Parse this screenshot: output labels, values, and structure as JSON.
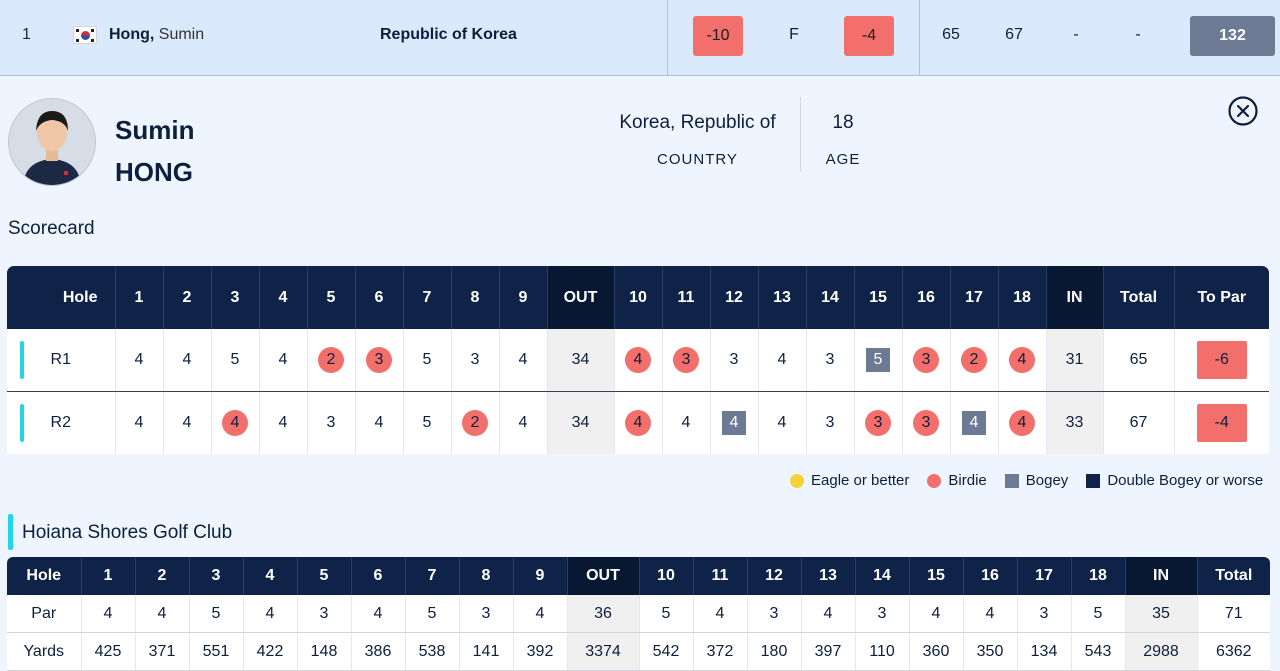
{
  "leaderboard": {
    "position": "1",
    "last_name": "Hong,",
    "first_name": "Sumin",
    "country": "Republic of Korea",
    "to_par": "-10",
    "thru": "F",
    "today": "-4",
    "r1": "65",
    "r2": "67",
    "r3": "-",
    "r4": "-",
    "total": "132"
  },
  "player": {
    "first_name": "Sumin",
    "last_name": "HONG",
    "country_value": "Korea, Republic of",
    "country_label": "COUNTRY",
    "age_value": "18",
    "age_label": "AGE"
  },
  "scorecard": {
    "title": "Scorecard",
    "headers": [
      "Hole",
      "1",
      "2",
      "3",
      "4",
      "5",
      "6",
      "7",
      "8",
      "9",
      "OUT",
      "10",
      "11",
      "12",
      "13",
      "14",
      "15",
      "16",
      "17",
      "18",
      "IN",
      "Total",
      "To Par"
    ],
    "rounds": [
      {
        "label": "R1",
        "scores": [
          {
            "v": "4",
            "t": ""
          },
          {
            "v": "4",
            "t": ""
          },
          {
            "v": "5",
            "t": ""
          },
          {
            "v": "4",
            "t": ""
          },
          {
            "v": "2",
            "t": "birdie"
          },
          {
            "v": "3",
            "t": "birdie"
          },
          {
            "v": "5",
            "t": ""
          },
          {
            "v": "3",
            "t": ""
          },
          {
            "v": "4",
            "t": ""
          },
          {
            "v": "34",
            "t": "out"
          },
          {
            "v": "4",
            "t": "birdie"
          },
          {
            "v": "3",
            "t": "birdie"
          },
          {
            "v": "3",
            "t": ""
          },
          {
            "v": "4",
            "t": ""
          },
          {
            "v": "3",
            "t": ""
          },
          {
            "v": "5",
            "t": "bogey"
          },
          {
            "v": "3",
            "t": "birdie"
          },
          {
            "v": "2",
            "t": "birdie"
          },
          {
            "v": "4",
            "t": "birdie"
          },
          {
            "v": "31",
            "t": "in"
          },
          {
            "v": "65",
            "t": ""
          },
          {
            "v": "-6",
            "t": "topar"
          }
        ]
      },
      {
        "label": "R2",
        "scores": [
          {
            "v": "4",
            "t": ""
          },
          {
            "v": "4",
            "t": ""
          },
          {
            "v": "4",
            "t": "birdie"
          },
          {
            "v": "4",
            "t": ""
          },
          {
            "v": "3",
            "t": ""
          },
          {
            "v": "4",
            "t": ""
          },
          {
            "v": "5",
            "t": ""
          },
          {
            "v": "2",
            "t": "birdie"
          },
          {
            "v": "4",
            "t": ""
          },
          {
            "v": "34",
            "t": "out"
          },
          {
            "v": "4",
            "t": "birdie"
          },
          {
            "v": "4",
            "t": ""
          },
          {
            "v": "4",
            "t": "bogey"
          },
          {
            "v": "4",
            "t": ""
          },
          {
            "v": "3",
            "t": ""
          },
          {
            "v": "3",
            "t": "birdie"
          },
          {
            "v": "3",
            "t": "birdie"
          },
          {
            "v": "4",
            "t": "bogey"
          },
          {
            "v": "4",
            "t": "birdie"
          },
          {
            "v": "33",
            "t": "in"
          },
          {
            "v": "67",
            "t": ""
          },
          {
            "v": "-4",
            "t": "topar"
          }
        ]
      }
    ]
  },
  "legend": [
    {
      "label": "Eagle or better",
      "color": "#f3d23a",
      "shape": "dot"
    },
    {
      "label": "Birdie",
      "color": "#f36f6b",
      "shape": "dot"
    },
    {
      "label": "Bogey",
      "color": "#6c7a93",
      "shape": "square"
    },
    {
      "label": "Double Bogey or worse",
      "color": "#0f2348",
      "shape": "square"
    }
  ],
  "course": {
    "name": "Hoiana Shores Golf Club",
    "headers": [
      "Hole",
      "1",
      "2",
      "3",
      "4",
      "5",
      "6",
      "7",
      "8",
      "9",
      "OUT",
      "10",
      "11",
      "12",
      "13",
      "14",
      "15",
      "16",
      "17",
      "18",
      "IN",
      "Total"
    ],
    "par": [
      "Par",
      "4",
      "4",
      "5",
      "4",
      "3",
      "4",
      "5",
      "3",
      "4",
      "36",
      "5",
      "4",
      "3",
      "4",
      "3",
      "4",
      "4",
      "3",
      "5",
      "35",
      "71"
    ],
    "yards": [
      "Yards",
      "425",
      "371",
      "551",
      "422",
      "148",
      "386",
      "538",
      "141",
      "392",
      "3374",
      "542",
      "372",
      "180",
      "397",
      "110",
      "360",
      "350",
      "134",
      "543",
      "2988",
      "6362"
    ]
  },
  "colors": {
    "birdie": "#f36f6b",
    "bogey": "#6c7a93",
    "header_navy": "#0f2348",
    "accent_cyan": "#21d6e6"
  }
}
